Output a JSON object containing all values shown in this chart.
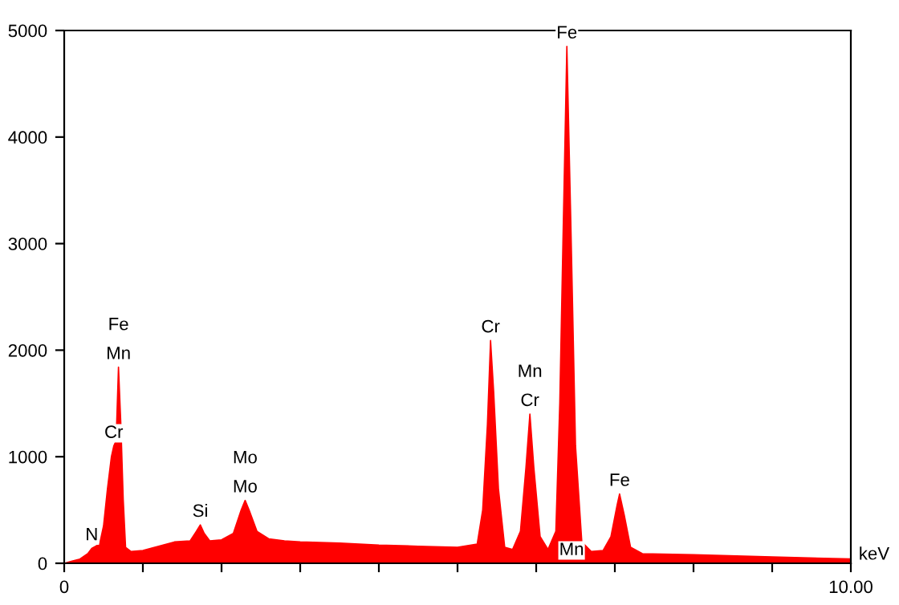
{
  "chart_data": {
    "type": "area",
    "xlabel": "keV",
    "x": [
      0,
      0.1,
      0.2,
      0.3,
      0.35,
      0.4,
      0.45,
      0.5,
      0.55,
      0.6,
      0.63,
      0.66,
      0.69,
      0.72,
      0.75,
      0.78,
      0.85,
      1.0,
      1.2,
      1.4,
      1.6,
      1.68,
      1.73,
      1.78,
      1.85,
      2.0,
      2.15,
      2.25,
      2.3,
      2.35,
      2.45,
      2.6,
      2.8,
      3.0,
      3.5,
      4.0,
      4.5,
      5.0,
      5.25,
      5.32,
      5.38,
      5.42,
      5.46,
      5.52,
      5.6,
      5.7,
      5.8,
      5.87,
      5.92,
      5.97,
      6.05,
      6.15,
      6.25,
      6.3,
      6.34,
      6.39,
      6.44,
      6.5,
      6.58,
      6.7,
      6.85,
      6.95,
      7.03,
      7.06,
      7.12,
      7.2,
      7.35,
      8.0,
      9.0,
      10.0
    ],
    "series": [
      {
        "color": "#ff0000",
        "values": [
          0,
          20,
          40,
          90,
          140,
          160,
          180,
          350,
          700,
          1000,
          1100,
          1150,
          1840,
          1300,
          600,
          150,
          110,
          120,
          160,
          200,
          210,
          300,
          360,
          280,
          210,
          220,
          280,
          500,
          590,
          500,
          300,
          230,
          210,
          200,
          190,
          170,
          160,
          150,
          180,
          500,
          1300,
          2090,
          1600,
          700,
          150,
          130,
          300,
          900,
          1400,
          900,
          250,
          130,
          300,
          1500,
          3000,
          4850,
          3200,
          1100,
          200,
          110,
          120,
          250,
          550,
          650,
          450,
          150,
          90,
          80,
          60,
          40
        ]
      }
    ],
    "xlim": [
      0,
      10
    ],
    "ylim": [
      0,
      5000
    ],
    "xticks": [
      0,
      {
        "value": 1,
        "label": null
      },
      {
        "value": 2,
        "label": null
      },
      {
        "value": 3,
        "label": null
      },
      {
        "value": 4,
        "label": null
      },
      {
        "value": 5,
        "label": null
      },
      {
        "value": 6,
        "label": null
      },
      {
        "value": 7,
        "label": null
      },
      {
        "value": 8,
        "label": null
      },
      {
        "value": 9,
        "label": null
      },
      {
        "value": 10,
        "label": "10.00"
      }
    ],
    "yticks": [
      0,
      1000,
      2000,
      3000,
      4000,
      5000
    ],
    "grid": false,
    "legend": false,
    "annotations": [
      {
        "text": "N",
        "x": 0.35,
        "y": 140
      },
      {
        "text": "Cr",
        "x": 0.63,
        "y": 1100
      },
      {
        "text": "Mn",
        "x": 0.69,
        "y": 1840
      },
      {
        "text": "Fe",
        "x": 0.69,
        "y": 1840
      },
      {
        "text": "Si",
        "x": 1.73,
        "y": 360
      },
      {
        "text": "Mo",
        "x": 2.3,
        "y": 590
      },
      {
        "text": "Mo",
        "x": 2.3,
        "y": 590
      },
      {
        "text": "Cr",
        "x": 5.42,
        "y": 2090
      },
      {
        "text": "Cr",
        "x": 5.92,
        "y": 1400
      },
      {
        "text": "Mn",
        "x": 5.92,
        "y": 1400
      },
      {
        "text": "Fe",
        "x": 6.39,
        "y": 4850
      },
      {
        "text": "Mn",
        "x": 6.45,
        "y": 0
      },
      {
        "text": "Fe",
        "x": 7.06,
        "y": 650
      }
    ]
  }
}
